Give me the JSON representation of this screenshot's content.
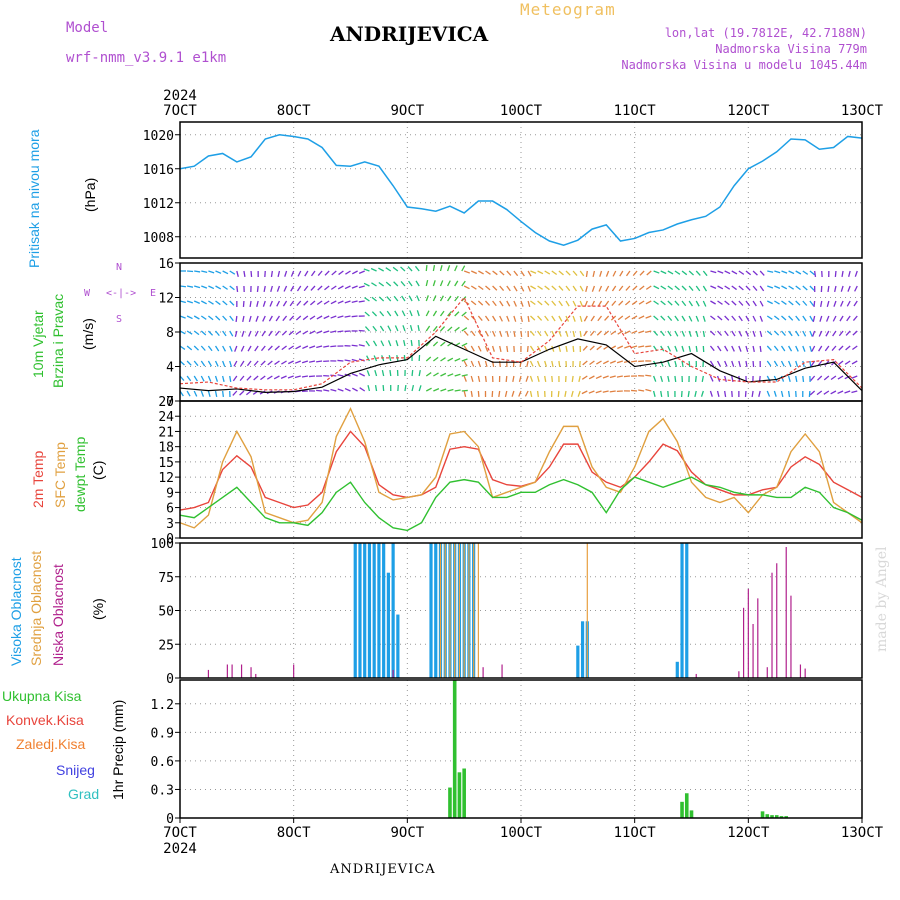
{
  "header": {
    "station": "ANDRIJEVICA",
    "meteogram_label": "Meteogram",
    "model_label": "Model",
    "model_version": "wrf-nmm_v3.9.1  e1km",
    "lonlat": "lon,lat (19.7812E, 42.7188N)",
    "altitude": "Nadmorska Visina 779m",
    "model_altitude": "Nadmorska Visina u modelu 1045.44m",
    "year_top": "2024",
    "year_bottom": "2024",
    "footer_station": "ANDRIJEVICA",
    "credit": "made by Angel"
  },
  "time_axis": {
    "labels": [
      "7OCT",
      "8OCT",
      "9OCT",
      "10OCT",
      "11OCT",
      "12OCT",
      "13OCT"
    ]
  },
  "panel_labels": {
    "pressure": [
      "Pritisak na nivou mora",
      "(hPa)"
    ],
    "wind": [
      "10m Vjetar",
      "Brzina i Pravac",
      "(m/s)"
    ],
    "wind_compass": [
      "N",
      "W",
      "E",
      "S"
    ],
    "temp": [
      "2m Temp",
      "SFC Temp",
      "dewpt Temp",
      "(C)"
    ],
    "cloud": [
      "Visoka Oblacnost",
      "Srednja Oblacnost",
      "Niska Oblacnost",
      "(%)"
    ],
    "precip": [
      "Ukupna Kisa",
      "Konvek.Kisa",
      "Zaledj.Kisa",
      "Snijeg",
      "Grad",
      "1hr Precip (mm)"
    ]
  },
  "colors": {
    "pressure": "#1e9fe6",
    "temp2m": "#e8453c",
    "sfc": "#e0a040",
    "dewpt": "#30c030",
    "high_cloud": "#1e9fe6",
    "mid_cloud": "#e8a040",
    "low_cloud": "#b0208c",
    "precip_total": "#30c030",
    "precip_conv": "#e8453c",
    "precip_frz": "#f08030",
    "snow": "#4040e0",
    "hail": "#30c0c0",
    "title_purple": "#b050d0"
  },
  "chart_data": [
    {
      "type": "line",
      "name": "pressure",
      "ylabel": "Pritisak na nivou mora (hPa)",
      "ylim": [
        1005.5,
        1021.5
      ],
      "yticks": [
        1008,
        1012,
        1016,
        1020
      ],
      "series": [
        {
          "name": "Pritisak na nivou mora",
          "x": [
            0,
            3,
            6,
            9,
            12,
            15,
            18,
            21,
            24,
            27,
            30,
            33,
            36,
            39,
            42,
            45,
            48,
            51,
            54,
            57,
            60,
            63,
            66,
            69,
            72,
            75,
            78,
            81,
            84,
            87,
            90,
            93,
            96,
            99,
            102,
            105,
            108,
            111,
            114,
            117,
            120,
            123,
            126,
            129,
            132,
            135,
            138,
            141,
            144
          ],
          "values": [
            1016,
            1016.3,
            1017.5,
            1017.8,
            1016.8,
            1017.4,
            1019.5,
            1020,
            1019.8,
            1019.5,
            1018.5,
            1016.4,
            1016.3,
            1016.8,
            1016.3,
            1014,
            1011.5,
            1011.3,
            1011,
            1011.6,
            1010.8,
            1012.2,
            1012.2,
            1011.2,
            1009.8,
            1008.5,
            1007.5,
            1007,
            1007.6,
            1008.9,
            1009.4,
            1007.5,
            1007.8,
            1008.5,
            1008.8,
            1009.5,
            1010,
            1010.4,
            1011.5,
            1014,
            1016,
            1016.9,
            1018,
            1019.5,
            1019.4,
            1018.3,
            1018.5,
            1019.8,
            1019.6
          ]
        }
      ]
    },
    {
      "type": "line",
      "name": "wind",
      "ylabel": "10m Vjetar Brzina i Pravac (m/s)",
      "ylim": [
        0,
        16
      ],
      "yticks": [
        0,
        4,
        8,
        12,
        16
      ],
      "series": [
        {
          "name": "wind speed",
          "x": [
            0,
            6,
            12,
            18,
            24,
            30,
            36,
            42,
            48,
            54,
            60,
            66,
            72,
            78,
            84,
            90,
            96,
            102,
            108,
            114,
            120,
            126,
            132,
            138,
            144
          ],
          "values": [
            1.5,
            1.2,
            1.4,
            1.0,
            1.1,
            1.6,
            3.2,
            4.2,
            4.8,
            7.5,
            6.0,
            4.5,
            4.5,
            6.0,
            7.2,
            6.5,
            4.0,
            4.5,
            5.5,
            3.5,
            2.2,
            2.5,
            3.8,
            4.5,
            1.2
          ]
        },
        {
          "name": "wind gust",
          "x": [
            0,
            6,
            12,
            18,
            24,
            30,
            36,
            42,
            48,
            54,
            60,
            66,
            72,
            78,
            84,
            90,
            96,
            102,
            108,
            114,
            120,
            126,
            132,
            138,
            144
          ],
          "values": [
            2.0,
            2.2,
            1.5,
            1.3,
            1.3,
            2.0,
            4.5,
            5.0,
            5.0,
            8.0,
            12.0,
            5.0,
            4.5,
            7.0,
            11.0,
            11.0,
            5.5,
            6.0,
            4.0,
            2.5,
            2.2,
            2.2,
            4.5,
            4.8,
            1.5
          ]
        }
      ]
    },
    {
      "type": "line",
      "name": "temperature",
      "ylabel": "(C)",
      "ylim": [
        0,
        27
      ],
      "yticks": [
        0,
        3,
        6,
        9,
        12,
        15,
        18,
        21,
        24,
        27
      ],
      "series": [
        {
          "name": "2m Temp",
          "x": [
            0,
            3,
            6,
            9,
            12,
            15,
            18,
            21,
            24,
            27,
            30,
            33,
            36,
            39,
            42,
            45,
            48,
            51,
            54,
            57,
            60,
            63,
            66,
            69,
            72,
            75,
            78,
            81,
            84,
            87,
            90,
            93,
            96,
            99,
            102,
            105,
            108,
            111,
            114,
            117,
            120,
            123,
            126,
            129,
            132,
            135,
            138,
            141,
            144
          ],
          "values": [
            5.5,
            6,
            7,
            13.5,
            16.2,
            14,
            8,
            7,
            6,
            6.5,
            9,
            17,
            21,
            18,
            10.5,
            8.5,
            8,
            8.5,
            10,
            17.5,
            18,
            17.5,
            11.5,
            10.5,
            10.2,
            11,
            14,
            18.5,
            18.5,
            13,
            11,
            10,
            12,
            15,
            18.5,
            17.2,
            13,
            10.5,
            9.5,
            8.5,
            8.5,
            9.5,
            10,
            14,
            16,
            14.5,
            11,
            9.5,
            8
          ]
        },
        {
          "name": "SFC Temp",
          "x": [
            0,
            3,
            6,
            9,
            12,
            15,
            18,
            21,
            24,
            27,
            30,
            33,
            36,
            39,
            42,
            45,
            48,
            51,
            54,
            57,
            60,
            63,
            66,
            69,
            72,
            75,
            78,
            81,
            84,
            87,
            90,
            93,
            96,
            99,
            102,
            105,
            108,
            111,
            114,
            117,
            120,
            123,
            126,
            129,
            132,
            135,
            138,
            141,
            144
          ],
          "values": [
            3,
            2,
            4.5,
            15,
            21,
            16,
            5,
            4,
            3,
            3.5,
            7,
            20,
            25.5,
            19,
            9,
            7.5,
            8,
            8.5,
            12,
            20.5,
            21,
            18,
            8,
            9,
            10,
            11,
            17,
            22,
            22,
            14,
            10,
            9,
            14,
            21,
            23.5,
            19,
            11,
            8,
            7,
            8,
            5,
            8.5,
            10,
            17,
            20.5,
            17,
            7,
            5,
            3
          ]
        },
        {
          "name": "dewpt Temp",
          "x": [
            0,
            3,
            6,
            9,
            12,
            15,
            18,
            21,
            24,
            27,
            30,
            33,
            36,
            39,
            42,
            45,
            48,
            51,
            54,
            57,
            60,
            63,
            66,
            69,
            72,
            75,
            78,
            81,
            84,
            87,
            90,
            93,
            96,
            99,
            102,
            105,
            108,
            111,
            114,
            117,
            120,
            123,
            126,
            129,
            132,
            135,
            138,
            141,
            144
          ],
          "values": [
            4.5,
            4,
            6,
            8,
            10,
            7,
            4,
            3,
            3,
            2.5,
            5,
            9,
            11,
            7,
            4,
            2,
            1.5,
            3,
            8,
            11,
            11.5,
            11,
            8,
            8,
            9,
            9,
            10.5,
            11.5,
            10.5,
            9,
            5,
            9.5,
            12,
            11,
            10,
            11,
            12,
            10.5,
            10,
            9,
            8.5,
            8.5,
            8,
            8,
            10,
            9,
            6,
            5,
            3.5
          ]
        }
      ]
    },
    {
      "type": "bar",
      "name": "cloud",
      "ylabel": "(%)",
      "ylim": [
        0,
        100
      ],
      "yticks": [
        0,
        25,
        50,
        75,
        100
      ],
      "series": [
        {
          "name": "Visoka Oblacnost",
          "x": [
            37,
            38,
            39,
            40,
            41,
            42,
            43,
            44,
            45,
            46,
            53,
            54,
            55,
            56,
            57,
            58,
            59,
            60,
            61,
            62,
            84,
            85,
            86,
            105,
            106,
            107
          ],
          "values": [
            100,
            100,
            100,
            100,
            100,
            100,
            100,
            78,
            100,
            47,
            100,
            100,
            100,
            100,
            100,
            100,
            100,
            100,
            100,
            100,
            24,
            42,
            42,
            12,
            100,
            100
          ]
        },
        {
          "name": "Srednja Oblacnost",
          "x": [
            55,
            56,
            57,
            58,
            59,
            60,
            61,
            62,
            63,
            86
          ],
          "values": [
            100,
            100,
            100,
            100,
            100,
            100,
            100,
            100,
            100,
            100
          ]
        },
        {
          "name": "Niska Oblacnost",
          "x": [
            6,
            10,
            11,
            13,
            15,
            16,
            24,
            45,
            64,
            68,
            109,
            118,
            119,
            120,
            121,
            122,
            124,
            125,
            126,
            128,
            129,
            131,
            132
          ],
          "values": [
            6,
            10,
            10,
            10,
            8,
            3,
            10,
            6,
            8,
            10,
            3,
            5,
            52,
            66,
            40,
            59,
            8,
            78,
            85,
            97,
            61,
            10,
            7
          ]
        }
      ]
    },
    {
      "type": "bar",
      "name": "precip",
      "ylabel": "1hr Precip (mm)",
      "ylim": [
        0,
        1.45
      ],
      "yticks": [
        0,
        0.3,
        0.6,
        0.9,
        1.2
      ],
      "series": [
        {
          "name": "Ukupna Kisa",
          "x": [
            57,
            58,
            59,
            60,
            106,
            107,
            108,
            123,
            124,
            125,
            126,
            127,
            128
          ],
          "values": [
            0.32,
            1.45,
            0.48,
            0.52,
            0.17,
            0.26,
            0.08,
            0.07,
            0.04,
            0.03,
            0.03,
            0.02,
            0.02
          ]
        },
        {
          "name": "Konvek.Kisa",
          "x": [],
          "values": []
        },
        {
          "name": "Zaledj.Kisa",
          "x": [],
          "values": []
        },
        {
          "name": "Snijeg",
          "x": [],
          "values": []
        },
        {
          "name": "Grad",
          "x": [],
          "values": []
        }
      ]
    }
  ]
}
